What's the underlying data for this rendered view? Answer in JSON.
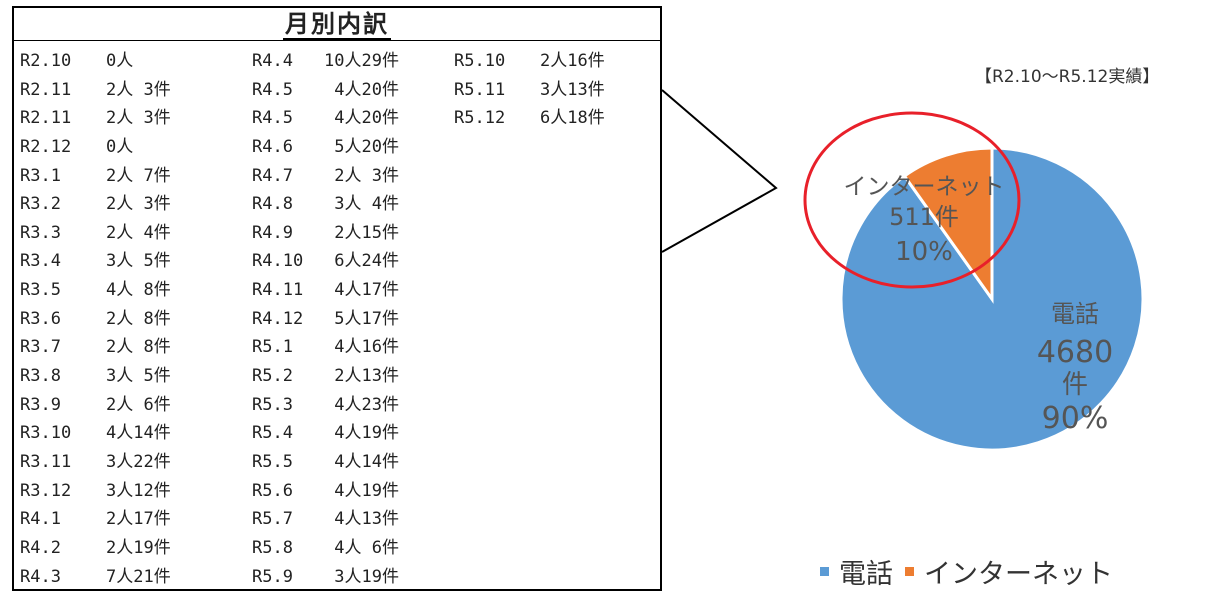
{
  "table": {
    "title": "月別内訳",
    "columns": [
      [
        {
          "month": "R2.10",
          "value": "0人"
        },
        {
          "month": "R2.11",
          "value": "2人 3件"
        },
        {
          "month": "R2.11",
          "value": "2人 3件"
        },
        {
          "month": "R2.12",
          "value": "0人"
        },
        {
          "month": "R3.1",
          "value": "2人 7件"
        },
        {
          "month": "R3.2",
          "value": "2人 3件"
        },
        {
          "month": "R3.3",
          "value": "2人 4件"
        },
        {
          "month": "R3.4",
          "value": "3人 5件"
        },
        {
          "month": "R3.5",
          "value": "4人 8件"
        },
        {
          "month": "R3.6",
          "value": "2人 8件"
        },
        {
          "month": "R3.7",
          "value": "2人 8件"
        },
        {
          "month": "R3.8",
          "value": "3人 5件"
        },
        {
          "month": "R3.9",
          "value": "2人 6件"
        },
        {
          "month": "R3.10",
          "value": "4人14件"
        },
        {
          "month": "R3.11",
          "value": "3人22件"
        },
        {
          "month": "R3.12",
          "value": "3人12件"
        },
        {
          "month": "R4.1",
          "value": "2人17件"
        },
        {
          "month": "R4.2",
          "value": "2人19件"
        },
        {
          "month": "R4.3",
          "value": "7人21件"
        }
      ],
      [
        {
          "month": "R4.4",
          "value": "10人29件"
        },
        {
          "month": "R4.5",
          "value": " 4人20件"
        },
        {
          "month": "R4.5",
          "value": " 4人20件"
        },
        {
          "month": "R4.6",
          "value": " 5人20件"
        },
        {
          "month": "R4.7",
          "value": " 2人 3件"
        },
        {
          "month": "R4.8",
          "value": " 3人 4件"
        },
        {
          "month": "R4.9",
          "value": " 2人15件"
        },
        {
          "month": "R4.10",
          "value": " 6人24件"
        },
        {
          "month": "R4.11",
          "value": " 4人17件"
        },
        {
          "month": "R4.12",
          "value": " 5人17件"
        },
        {
          "month": "R5.1",
          "value": " 4人16件"
        },
        {
          "month": "R5.2",
          "value": " 2人13件"
        },
        {
          "month": "R5.3",
          "value": " 4人23件"
        },
        {
          "month": "R5.4",
          "value": " 4人19件"
        },
        {
          "month": "R5.5",
          "value": " 4人14件"
        },
        {
          "month": "R5.6",
          "value": " 4人19件"
        },
        {
          "month": "R5.7",
          "value": " 4人13件"
        },
        {
          "month": "R5.8",
          "value": " 4人 6件"
        },
        {
          "month": "R5.9",
          "value": " 3人19件"
        }
      ],
      [
        {
          "month": "R5.10",
          "value": "2人16件"
        },
        {
          "month": "R5.11",
          "value": "3人13件"
        },
        {
          "month": "R5.12",
          "value": "6人18件"
        }
      ]
    ]
  },
  "chart_data": {
    "type": "pie",
    "title": "",
    "note": "【R2.10～R5.12実績】",
    "slices": [
      {
        "name": "電話",
        "count_label": "4680件",
        "count_label_lines": [
          "4680",
          "件"
        ],
        "value": 4680,
        "percent": 90,
        "percent_label": "90%",
        "color": "#5b9bd5"
      },
      {
        "name": "インターネット",
        "count_label": "511件",
        "value": 511,
        "percent": 10,
        "percent_label": "10%",
        "color": "#ed7d31"
      }
    ],
    "legend": [
      "電話",
      "インターネット"
    ],
    "legend_position": "bottom",
    "highlight": {
      "target": "インターネット",
      "shape": "ellipse",
      "color": "#e8202a"
    }
  }
}
